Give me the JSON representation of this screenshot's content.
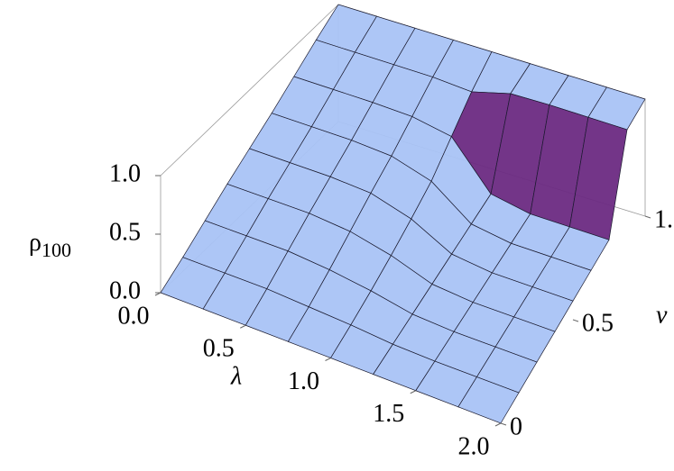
{
  "chart_data": {
    "type": "surface3d",
    "xlabel": "λ",
    "ylabel": "ν",
    "zlabel": {
      "text": "ρ",
      "subscript": "100"
    },
    "x": [
      0,
      0.25,
      0.5,
      0.75,
      1,
      1.25,
      1.5,
      1.75,
      2
    ],
    "y": [
      0,
      0.125,
      0.25,
      0.375,
      0.5,
      0.625,
      0.75,
      0.875,
      1
    ],
    "z": [
      [
        0,
        0.12,
        0.25,
        0.38,
        0.5,
        0.62,
        0.75,
        0.88,
        1
      ],
      [
        0,
        0.12,
        0.25,
        0.38,
        0.5,
        0.62,
        0.75,
        0.88,
        1
      ],
      [
        0,
        0.12,
        0.25,
        0.38,
        0.5,
        0.62,
        0.75,
        0.88,
        1
      ],
      [
        0,
        0.1,
        0.22,
        0.35,
        0.48,
        0.6,
        0.74,
        0.88,
        1
      ],
      [
        0,
        0.08,
        0.17,
        0.27,
        0.38,
        0.5,
        0.68,
        0.86,
        1
      ],
      [
        0,
        0.05,
        0.1,
        0.15,
        0.2,
        0.25,
        0.3,
        0.95,
        1
      ],
      [
        0,
        0.04,
        0.08,
        0.12,
        0.16,
        0.2,
        0.24,
        0.96,
        1
      ],
      [
        0,
        0.04,
        0.08,
        0.12,
        0.16,
        0.2,
        0.24,
        0.96,
        1
      ],
      [
        0,
        0.04,
        0.08,
        0.12,
        0.16,
        0.2,
        0.24,
        0.96,
        1
      ]
    ],
    "xlim": [
      0,
      2
    ],
    "ylim": [
      0,
      1
    ],
    "zlim": [
      0,
      1
    ],
    "xticks": [
      {
        "value": 0,
        "label": "0.0"
      },
      0.5,
      {
        "value": 1,
        "label": "1.0"
      },
      1.5,
      {
        "value": 2,
        "label": "2.0"
      }
    ],
    "yticks": [
      0,
      0.5,
      {
        "value": 1,
        "label": "1."
      }
    ],
    "zticks": [
      {
        "value": 0,
        "label": "0.0"
      },
      0.5,
      {
        "value": 1,
        "label": "1.0"
      }
    ],
    "color": "#a9c3f5",
    "wall_color": "#6b2a82"
  }
}
